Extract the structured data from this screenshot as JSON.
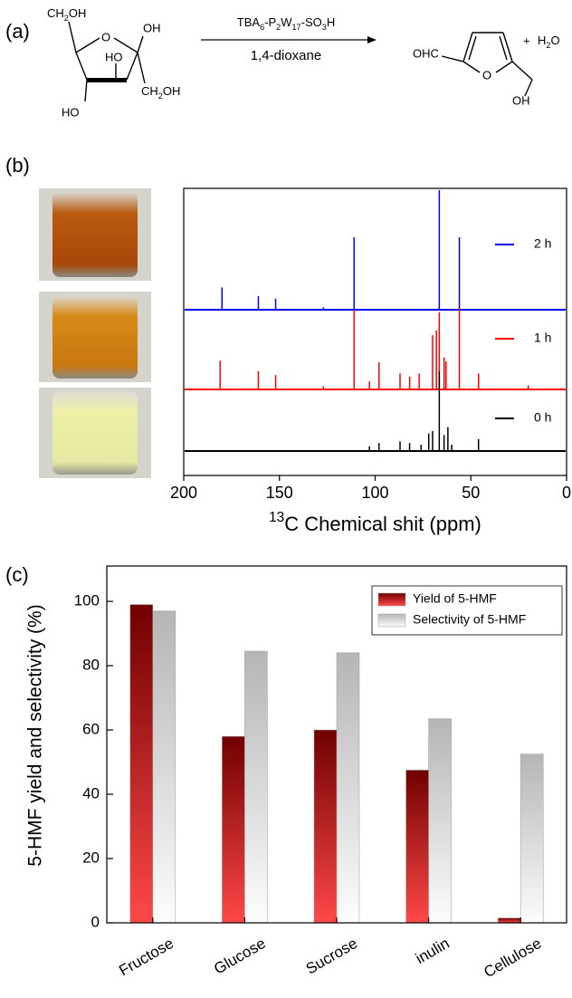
{
  "panels": [
    "(a)",
    "(b)",
    "(c)"
  ],
  "scheme": {
    "reactant": {
      "ch2oh_top": [
        "CH",
        "2",
        "OH"
      ],
      "ring_o": "O",
      "oh_top": "OH",
      "ho_mid": "HO",
      "ch2oh_right": [
        "CH",
        "2",
        "OH"
      ],
      "ho_bottom": "HO"
    },
    "reagent": [
      "TBA",
      "6",
      "-P",
      "2",
      "W",
      "17",
      "-SO",
      "3",
      "H"
    ],
    "solvent": "1,4-dioxane",
    "product": {
      "cho": "OHC",
      "ring_o": "O",
      "oh": "OH"
    },
    "plus": "+",
    "water": [
      "H",
      "2",
      "O"
    ]
  },
  "chart_data": [
    {
      "type": "spectrum",
      "x_label": [
        "13",
        "C Chemical shit (ppm)"
      ],
      "xlim": [
        200,
        0
      ],
      "xticks": [
        200,
        150,
        100,
        50,
        0
      ],
      "ylim": [
        0,
        150
      ],
      "series": [
        {
          "name": "2 h",
          "color": "#0000ff",
          "x": [
            180,
            161,
            152,
            127,
            111,
            66.5,
            56
          ],
          "values": [
            28,
            17,
            14,
            3,
            91,
            150,
            91
          ]
        },
        {
          "name": "1 h",
          "color": "#ff0000",
          "x": [
            181,
            161,
            152,
            127,
            111,
            103,
            98,
            87,
            82,
            77,
            70,
            68,
            66.5,
            64,
            63,
            56,
            46,
            20
          ],
          "values": [
            36,
            23,
            18,
            4,
            100,
            10,
            34,
            20,
            16,
            20,
            68,
            74,
            97,
            40,
            35,
            102,
            20,
            5
          ]
        },
        {
          "name": "0 h",
          "color": "#000000",
          "x": [
            103,
            98,
            87,
            82,
            76,
            72,
            70,
            66.5,
            64,
            62,
            60,
            46
          ],
          "values": [
            6,
            10,
            12,
            10,
            8,
            22,
            25,
            100,
            20,
            30,
            8,
            15
          ]
        }
      ]
    },
    {
      "type": "bar",
      "y_label": "5-HMF yield and selectivity (%)",
      "categories": [
        "Fructose",
        "Glucose",
        "Sucrose",
        "inulin",
        "Cellulose"
      ],
      "ylim": [
        0,
        111
      ],
      "yticks": [
        0,
        20,
        40,
        60,
        80,
        100
      ],
      "series": [
        {
          "name": "Yield of 5-HMF",
          "color": "#700000",
          "gradient_end": "#ff4848",
          "values": [
            99,
            58,
            60,
            47.5,
            1.5
          ]
        },
        {
          "name": "Selectivity of 5-HMF",
          "color": "#b5b5b5",
          "gradient_end": "#fcfcfc",
          "values": [
            97,
            84.5,
            84,
            63.5,
            52.5
          ]
        }
      ]
    }
  ]
}
